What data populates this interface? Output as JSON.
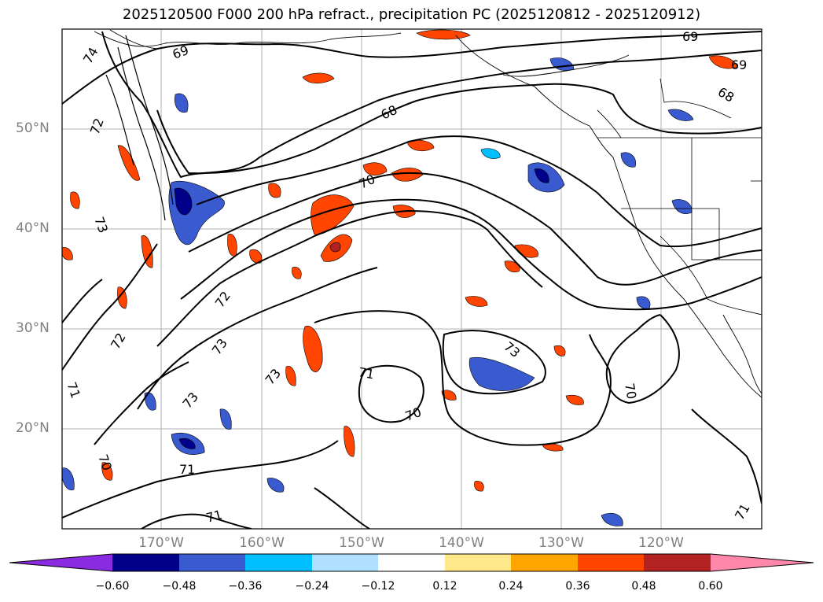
{
  "title": "2025120500 F000 200 hPa refract., precipitation PC (2025120812 - 2025120912)",
  "map": {
    "lat_labels": [
      "50°N",
      "40°N",
      "30°N",
      "20°N"
    ],
    "lon_labels": [
      "170°W",
      "160°W",
      "150°W",
      "140°W",
      "130°W",
      "120°W"
    ],
    "contour_labels": [
      "69",
      "69",
      "69",
      "68",
      "68",
      "70",
      "74",
      "73",
      "72",
      "71",
      "73",
      "72",
      "73",
      "73",
      "72",
      "71",
      "73",
      "71",
      "70",
      "70",
      "70",
      "71",
      "71"
    ]
  },
  "colorbar": {
    "colors": [
      "#8a2be2",
      "#00008b",
      "#3a5bd0",
      "#00bfff",
      "#b0e0ff",
      "#ffffff",
      "#ffe88a",
      "#ffa500",
      "#ff4500",
      "#b22222",
      "#ff88aa"
    ],
    "ticks": [
      "−0.60",
      "−0.48",
      "−0.36",
      "−0.24",
      "−0.12",
      "0.12",
      "0.24",
      "0.36",
      "0.48",
      "0.60"
    ],
    "extend": "both"
  },
  "chart_data": {
    "type": "heatmap",
    "title": "2025120500 F000 200 hPa refract., precipitation PC (2025120812 - 2025120912)",
    "lat_range": [
      "10°N",
      "60°N"
    ],
    "lon_range": [
      "180°W",
      "110°W"
    ],
    "colorbar_bounds": [
      -0.6,
      -0.48,
      -0.36,
      -0.24,
      -0.12,
      0.12,
      0.24,
      0.36,
      0.48,
      0.6
    ],
    "contour_levels": [
      68,
      69,
      70,
      71,
      72,
      73,
      74
    ],
    "grid": true
  }
}
